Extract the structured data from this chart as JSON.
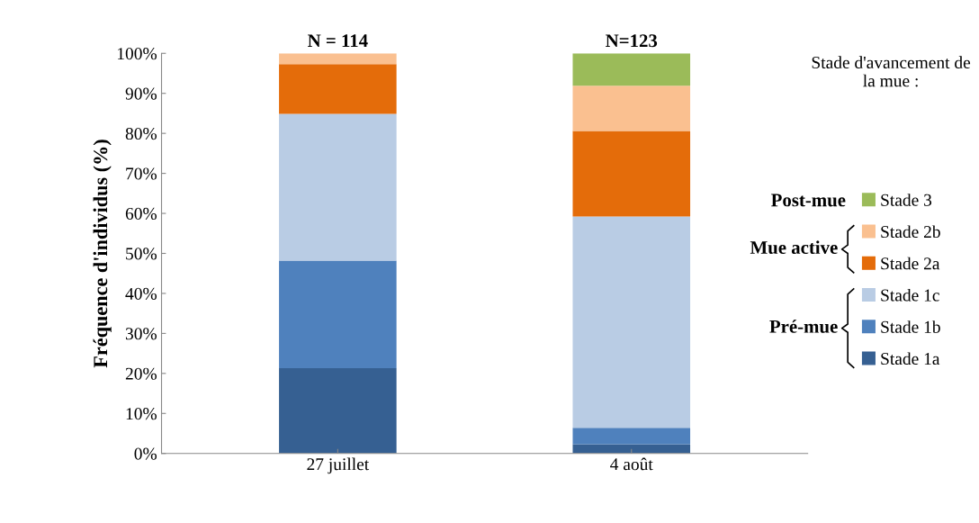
{
  "chart_data": {
    "type": "bar",
    "stacked": true,
    "ylabel": "Fréquence d'individus (%)",
    "legend_title": "Stade d'avancement de la mue :",
    "categories": [
      "27 juillet",
      "4 août"
    ],
    "series": [
      {
        "name": "Stade 1a",
        "color": "#366092",
        "values": [
          21.3,
          2.3
        ]
      },
      {
        "name": "Stade 1b",
        "color": "#4f81bd",
        "values": [
          26.9,
          4.1
        ]
      },
      {
        "name": "Stade 1c",
        "color": "#b9cce4",
        "values": [
          36.7,
          52.8
        ]
      },
      {
        "name": "Stade 2a",
        "color": "#e46c0a",
        "values": [
          12.4,
          21.4
        ]
      },
      {
        "name": "Stade 2b",
        "color": "#fac090",
        "values": [
          2.7,
          11.3
        ]
      },
      {
        "name": "Stade 3",
        "color": "#9bbb59",
        "values": [
          0,
          8.1
        ]
      }
    ],
    "ylim": [
      0,
      100
    ],
    "yticks": [
      {
        "value": 0,
        "label": "0%"
      },
      {
        "value": 10,
        "label": "10%"
      },
      {
        "value": 20,
        "label": "20%"
      },
      {
        "value": 30,
        "label": "30%"
      },
      {
        "value": 40,
        "label": "40%"
      },
      {
        "value": 50,
        "label": "50%"
      },
      {
        "value": 60,
        "label": "60%"
      },
      {
        "value": 70,
        "label": "70%"
      },
      {
        "value": 80,
        "label": "80%"
      },
      {
        "value": 90,
        "label": "90%"
      },
      {
        "value": 100,
        "label": "100%"
      }
    ],
    "grid": false,
    "legend": "right",
    "annotations": [
      {
        "text": "N = 114",
        "x": "27 juillet",
        "y": 100
      },
      {
        "text": "N=123",
        "x": "4 août",
        "y": 100
      },
      "Post-mue",
      "Mue active",
      "Pré-mue"
    ]
  }
}
